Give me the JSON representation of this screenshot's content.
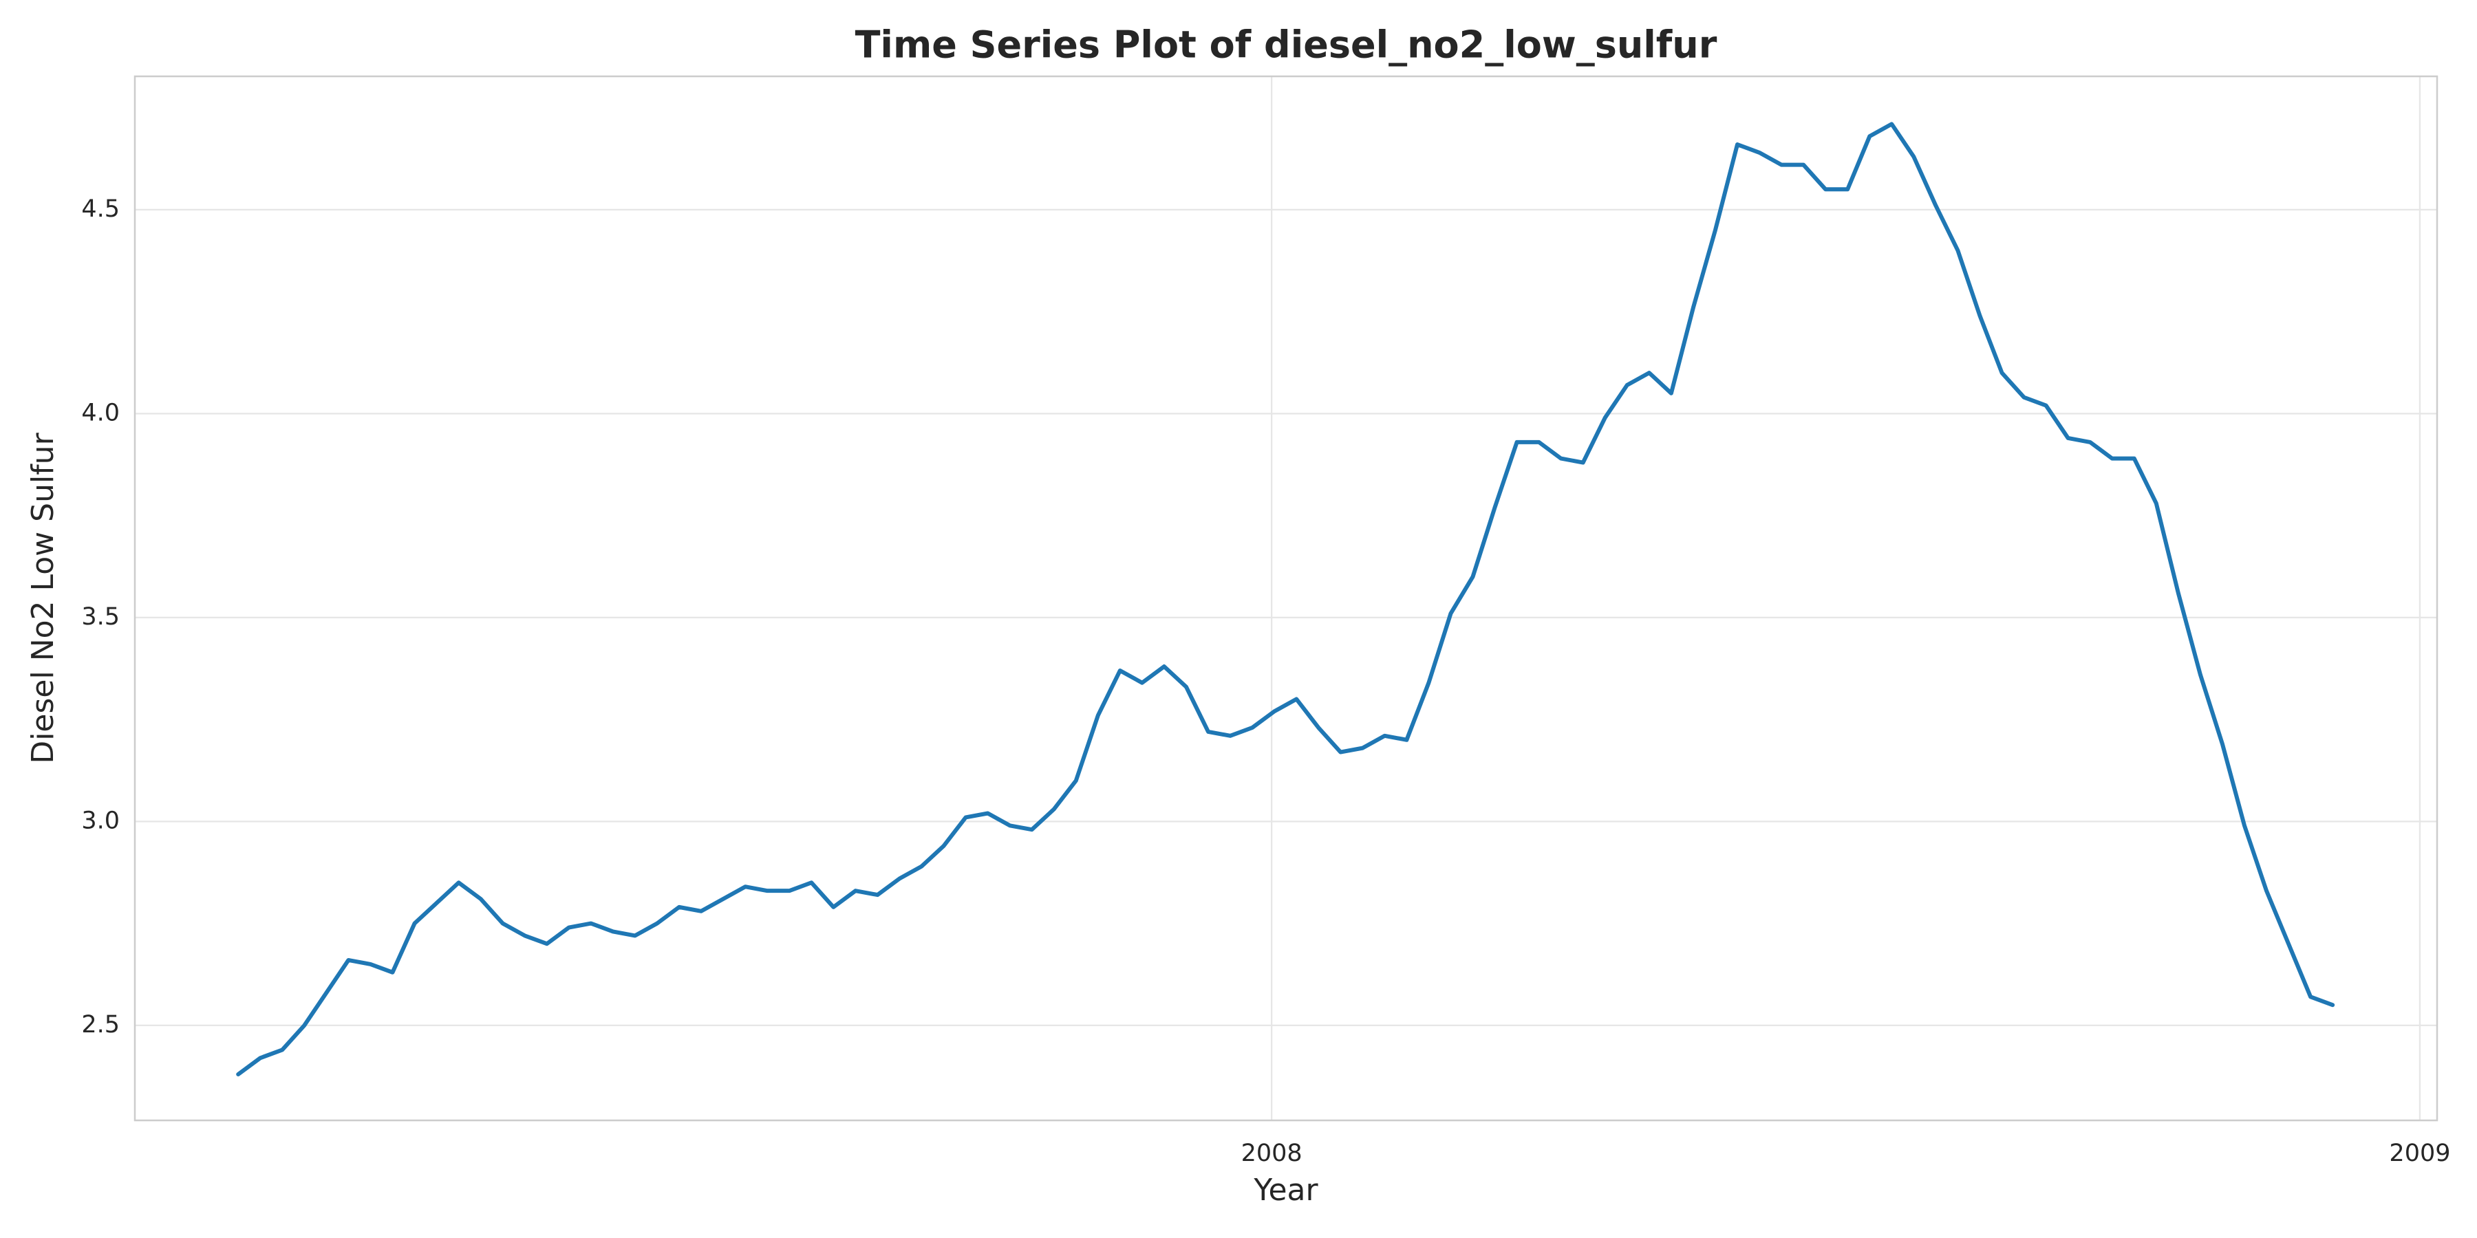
{
  "chart_data": {
    "type": "line",
    "title": "Time Series Plot of diesel_no2_low_sulfur",
    "x_label": "Year",
    "y_label": "Diesel No2 Low Sulfur",
    "x": [
      2007.1,
      2007.1192,
      2007.1384,
      2007.1576,
      2007.1768,
      2007.196,
      2007.2152,
      2007.2344,
      2007.2536,
      2007.2728,
      2007.292,
      2007.3112,
      2007.3304,
      2007.3496,
      2007.3688,
      2007.388,
      2007.4072,
      2007.4264,
      2007.4456,
      2007.4648,
      2007.484,
      2007.5032,
      2007.5224,
      2007.5416,
      2007.5608,
      2007.58,
      2007.5992,
      2007.6184,
      2007.6376,
      2007.6568,
      2007.676,
      2007.6952,
      2007.7144,
      2007.7336,
      2007.7528,
      2007.772,
      2007.7912,
      2007.8104,
      2007.8296,
      2007.8488,
      2007.868,
      2007.8872,
      2007.9064,
      2007.9256,
      2007.9448,
      2007.964,
      2007.9832,
      2008.0024,
      2008.0216,
      2008.0408,
      2008.06,
      2008.0792,
      2008.0984,
      2008.1176,
      2008.1368,
      2008.156,
      2008.1752,
      2008.1944,
      2008.2136,
      2008.2328,
      2008.252,
      2008.2712,
      2008.2904,
      2008.3096,
      2008.3288,
      2008.348,
      2008.3672,
      2008.3864,
      2008.4056,
      2008.4248,
      2008.444,
      2008.4632,
      2008.4824,
      2008.5016,
      2008.5208,
      2008.54,
      2008.5592,
      2008.5784,
      2008.5976,
      2008.6168,
      2008.636,
      2008.6552,
      2008.6744,
      2008.6936,
      2008.7128,
      2008.732,
      2008.7512,
      2008.7704,
      2008.7896,
      2008.8088,
      2008.828,
      2008.8472,
      2008.8664,
      2008.8856,
      2008.9048,
      2008.924
    ],
    "series": [
      {
        "name": "diesel_no2_low_sulfur",
        "color": "#1f77b4",
        "values": [
          2.38,
          2.42,
          2.44,
          2.5,
          2.58,
          2.66,
          2.65,
          2.63,
          2.75,
          2.8,
          2.85,
          2.81,
          2.75,
          2.72,
          2.7,
          2.74,
          2.75,
          2.73,
          2.72,
          2.75,
          2.79,
          2.78,
          2.81,
          2.84,
          2.83,
          2.83,
          2.85,
          2.79,
          2.83,
          2.82,
          2.86,
          2.89,
          2.94,
          3.01,
          3.02,
          2.99,
          2.98,
          3.03,
          3.1,
          3.26,
          3.37,
          3.34,
          3.38,
          3.33,
          3.22,
          3.21,
          3.23,
          3.27,
          3.3,
          3.23,
          3.17,
          3.18,
          3.21,
          3.2,
          3.34,
          3.51,
          3.6,
          3.77,
          3.93,
          3.93,
          3.89,
          3.88,
          3.99,
          4.07,
          4.1,
          4.05,
          4.26,
          4.45,
          4.66,
          4.64,
          4.61,
          4.61,
          4.55,
          4.55,
          4.68,
          4.71,
          4.63,
          4.51,
          4.4,
          4.24,
          4.1,
          4.04,
          4.02,
          3.94,
          3.93,
          3.89,
          3.89,
          3.78,
          3.56,
          3.36,
          3.19,
          2.99,
          2.83,
          2.7,
          2.57,
          2.55
        ]
      }
    ],
    "xlim": [
      2007.01,
      2009.015
    ],
    "xticks": [
      2008,
      2009
    ],
    "ylim": [
      2.267,
      4.827
    ],
    "yticks": [
      {
        "value": 2.5,
        "label": "2.5"
      },
      {
        "value": 3,
        "label": "3.0"
      },
      {
        "value": 3.5,
        "label": "3.5"
      },
      {
        "value": 4,
        "label": "4.0"
      },
      {
        "value": 4.5,
        "label": "4.5"
      }
    ],
    "grid": true
  }
}
